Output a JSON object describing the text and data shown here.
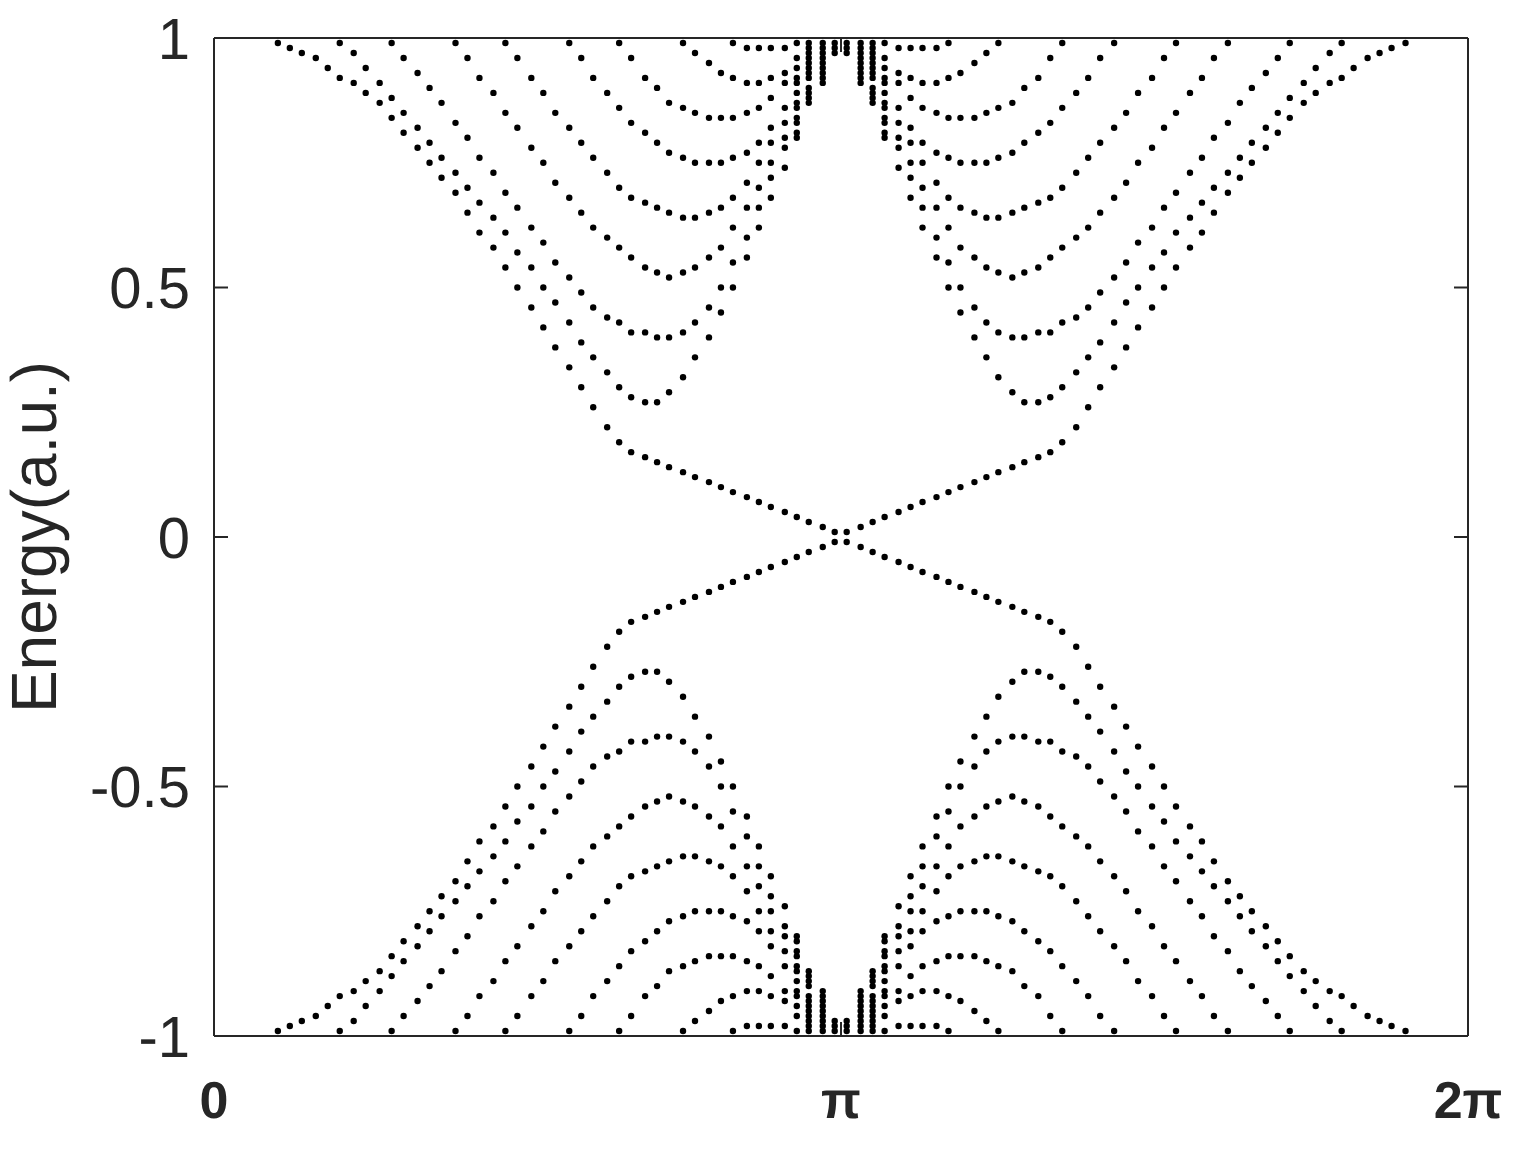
{
  "chart_data": {
    "type": "scatter",
    "ylabel": "Energy(a.u.)",
    "xlim": [
      0,
      6.283
    ],
    "xticks": [
      0,
      {
        "value": 3.1416,
        "label": "π"
      },
      {
        "value": 6.283,
        "label": "2π"
      }
    ],
    "ylim": [
      -1,
      1
    ],
    "yticks": [
      -1,
      -0.5,
      0,
      0.5,
      1
    ],
    "marker": "circle",
    "x": [
      0.32,
      0.38,
      0.44,
      0.51,
      0.57,
      0.63,
      0.7,
      0.76,
      0.83,
      0.89,
      0.95,
      1.02,
      1.08,
      1.14,
      1.21,
      1.27,
      1.33,
      1.4,
      1.46,
      1.52,
      1.59,
      1.65,
      1.71,
      1.78,
      1.84,
      1.9,
      1.97,
      2.03,
      2.09,
      2.16,
      2.22,
      2.28,
      2.35,
      2.41,
      2.48,
      2.54,
      2.6,
      2.67,
      2.73,
      2.79,
      2.86,
      2.92,
      2.98,
      3.05,
      3.11,
      3.17,
      3.24,
      3.3,
      3.36,
      3.43,
      3.49,
      3.55,
      3.62,
      3.68,
      3.74,
      3.81,
      3.87,
      3.93,
      4,
      4.06,
      4.13,
      4.19,
      4.25,
      4.32,
      4.38,
      4.44,
      4.51,
      4.57,
      4.63,
      4.7,
      4.76,
      4.82,
      4.89,
      4.95,
      5.01,
      5.08,
      5.14,
      5.2,
      5.27,
      5.33,
      5.39,
      5.46,
      5.52,
      5.59,
      5.65,
      5.71,
      5.78,
      5.84,
      5.9,
      5.97
    ],
    "series": [
      {
        "color": "#000000",
        "values": [
          0.99,
          0.98,
          0.97,
          0.96,
          0.94,
          0.92,
          0.91,
          0.89,
          0.87,
          0.84,
          0.81,
          0.78,
          0.75,
          0.72,
          0.69,
          0.65,
          0.61,
          0.58,
          0.54,
          0.5,
          0.46,
          0.42,
          0.38,
          0.34,
          0.3,
          0.26,
          0.22,
          0.19,
          0.17,
          0.16,
          0.15,
          0.14,
          0.13,
          0.12,
          0.11,
          0.1,
          0.09,
          0.08,
          0.07,
          0.06,
          0.05,
          0.04,
          0.03,
          0.02,
          0.01,
          -0.01,
          -0.02,
          -0.03,
          -0.04,
          -0.05,
          -0.06,
          -0.07,
          -0.08,
          -0.09,
          -0.1,
          -0.11,
          -0.12,
          -0.13,
          -0.14,
          -0.15,
          -0.16,
          -0.17,
          -0.19,
          -0.22,
          -0.26,
          -0.3,
          -0.34,
          -0.38,
          -0.42,
          -0.46,
          -0.5,
          -0.54,
          -0.58,
          -0.61,
          -0.65,
          -0.69,
          -0.72,
          -0.75,
          -0.78,
          -0.81,
          -0.84,
          -0.87,
          -0.89,
          -0.91,
          -0.92,
          -0.94,
          -0.96,
          -0.97,
          -0.98,
          -0.99
        ]
      },
      {
        "color": "#000000",
        "values": [
          -0.99,
          -0.98,
          -0.97,
          -0.96,
          -0.94,
          -0.92,
          -0.91,
          -0.89,
          -0.87,
          -0.84,
          -0.81,
          -0.78,
          -0.75,
          -0.72,
          -0.69,
          -0.65,
          -0.61,
          -0.58,
          -0.54,
          -0.5,
          -0.46,
          -0.42,
          -0.38,
          -0.34,
          -0.3,
          -0.26,
          -0.22,
          -0.19,
          -0.17,
          -0.16,
          -0.15,
          -0.14,
          -0.13,
          -0.12,
          -0.11,
          -0.1,
          -0.09,
          -0.08,
          -0.07,
          -0.06,
          -0.05,
          -0.04,
          -0.03,
          -0.02,
          -0.01,
          0.01,
          0.02,
          0.03,
          0.04,
          0.05,
          0.06,
          0.07,
          0.08,
          0.09,
          0.1,
          0.11,
          0.12,
          0.13,
          0.14,
          0.15,
          0.16,
          0.17,
          0.19,
          0.22,
          0.26,
          0.3,
          0.34,
          0.38,
          0.42,
          0.46,
          0.5,
          0.54,
          0.58,
          0.61,
          0.65,
          0.69,
          0.72,
          0.75,
          0.78,
          0.81,
          0.84,
          0.87,
          0.89,
          0.91,
          0.92,
          0.94,
          0.96,
          0.97,
          0.98,
          0.99
        ]
      },
      {
        "color": "#000000",
        "values": [
          null,
          null,
          null,
          null,
          null,
          0.99,
          0.97,
          0.94,
          0.91,
          0.88,
          0.85,
          0.82,
          0.79,
          0.76,
          0.73,
          0.7,
          0.67,
          0.64,
          0.61,
          0.57,
          0.54,
          0.5,
          0.47,
          0.43,
          0.39,
          0.36,
          0.33,
          0.3,
          0.28,
          0.27,
          0.27,
          0.29,
          0.32,
          0.36,
          0.4,
          0.45,
          0.5,
          0.56,
          0.62,
          0.68,
          0.74,
          0.8,
          0.87,
          0.93,
          0.99,
          0.99,
          0.93,
          0.87,
          0.8,
          0.74,
          0.68,
          0.62,
          0.56,
          0.5,
          0.45,
          0.4,
          0.36,
          0.32,
          0.29,
          0.27,
          0.27,
          0.28,
          0.3,
          0.33,
          0.36,
          0.39,
          0.43,
          0.47,
          0.5,
          0.54,
          0.57,
          0.61,
          0.64,
          0.67,
          0.7,
          0.73,
          0.76,
          0.79,
          0.82,
          0.85,
          0.88,
          0.91,
          0.94,
          0.97,
          0.99,
          null,
          null,
          null,
          null,
          null
        ]
      },
      {
        "color": "#000000",
        "values": [
          null,
          null,
          null,
          null,
          null,
          null,
          null,
          null,
          null,
          0.99,
          0.96,
          0.93,
          0.9,
          0.87,
          0.83,
          0.8,
          0.76,
          0.73,
          0.69,
          0.66,
          0.62,
          0.59,
          0.55,
          0.52,
          0.49,
          0.46,
          0.44,
          0.43,
          0.41,
          0.41,
          0.4,
          0.4,
          0.41,
          0.43,
          0.46,
          0.5,
          0.55,
          0.6,
          0.66,
          0.72,
          0.78,
          0.83,
          0.89,
          0.95,
          null,
          null,
          0.95,
          0.89,
          0.83,
          0.78,
          0.72,
          0.66,
          0.6,
          0.55,
          0.5,
          0.46,
          0.43,
          0.41,
          0.4,
          0.4,
          0.41,
          0.41,
          0.43,
          0.44,
          0.46,
          0.49,
          0.52,
          0.55,
          0.59,
          0.62,
          0.66,
          0.69,
          0.73,
          0.76,
          0.8,
          0.83,
          0.87,
          0.9,
          0.93,
          0.96,
          0.99,
          null,
          null,
          null,
          null,
          null,
          null,
          null,
          null,
          null
        ]
      },
      {
        "color": "#000000",
        "values": [
          null,
          null,
          null,
          null,
          null,
          null,
          null,
          null,
          null,
          null,
          null,
          null,
          null,
          null,
          0.99,
          0.96,
          0.92,
          0.89,
          0.85,
          0.82,
          0.78,
          0.75,
          0.71,
          0.68,
          0.65,
          0.62,
          0.6,
          0.58,
          0.56,
          0.54,
          0.53,
          0.52,
          0.53,
          0.54,
          0.56,
          0.58,
          0.62,
          0.66,
          0.7,
          0.75,
          0.8,
          0.86,
          0.92,
          0.98,
          null,
          null,
          0.98,
          0.92,
          0.86,
          0.8,
          0.75,
          0.7,
          0.66,
          0.62,
          0.58,
          0.56,
          0.54,
          0.53,
          0.52,
          0.53,
          0.54,
          0.56,
          0.58,
          0.6,
          0.62,
          0.65,
          0.68,
          0.71,
          0.75,
          0.78,
          0.82,
          0.85,
          0.89,
          0.92,
          0.96,
          0.99,
          null,
          null,
          null,
          null,
          null,
          null,
          null,
          null,
          null,
          null,
          null,
          null,
          null,
          null
        ]
      },
      {
        "color": "#000000",
        "values": [
          null,
          null,
          null,
          null,
          null,
          null,
          null,
          null,
          null,
          null,
          null,
          null,
          null,
          null,
          null,
          null,
          null,
          null,
          0.99,
          0.96,
          0.92,
          0.89,
          0.85,
          0.82,
          0.79,
          0.76,
          0.73,
          0.7,
          0.68,
          0.67,
          0.66,
          0.65,
          0.64,
          0.64,
          0.65,
          0.66,
          0.68,
          0.71,
          0.75,
          0.79,
          0.83,
          0.89,
          0.94,
          0.99,
          null,
          null,
          0.99,
          0.94,
          0.89,
          0.83,
          0.79,
          0.75,
          0.71,
          0.68,
          0.66,
          0.65,
          0.64,
          0.64,
          0.65,
          0.66,
          0.67,
          0.68,
          0.7,
          0.73,
          0.76,
          0.79,
          0.82,
          0.85,
          0.89,
          0.92,
          0.96,
          0.99,
          null,
          null,
          null,
          null,
          null,
          null,
          null,
          null,
          null,
          null,
          null,
          null,
          null,
          null,
          null,
          null,
          null,
          null
        ]
      },
      {
        "color": "#000000",
        "values": [
          null,
          null,
          null,
          null,
          null,
          null,
          null,
          null,
          null,
          null,
          null,
          null,
          null,
          null,
          null,
          null,
          null,
          null,
          null,
          null,
          null,
          null,
          null,
          0.99,
          0.96,
          0.92,
          0.89,
          0.86,
          0.83,
          0.81,
          0.79,
          0.77,
          0.76,
          0.75,
          0.75,
          0.75,
          0.76,
          0.77,
          0.79,
          0.82,
          0.86,
          0.91,
          0.96,
          null,
          null,
          null,
          null,
          0.96,
          0.91,
          0.86,
          0.82,
          0.79,
          0.77,
          0.76,
          0.75,
          0.75,
          0.75,
          0.76,
          0.77,
          0.79,
          0.81,
          0.83,
          0.86,
          0.89,
          0.92,
          0.96,
          0.99,
          null,
          null,
          null,
          null,
          null,
          null,
          null,
          null,
          null,
          null,
          null,
          null,
          null,
          null,
          null,
          null,
          null,
          null,
          null,
          null,
          null,
          null,
          null
        ]
      },
      {
        "color": "#000000",
        "values": [
          null,
          null,
          null,
          null,
          null,
          null,
          null,
          null,
          null,
          null,
          null,
          null,
          null,
          null,
          null,
          null,
          null,
          null,
          null,
          null,
          null,
          null,
          null,
          null,
          null,
          null,
          null,
          0.99,
          0.96,
          0.92,
          0.9,
          0.87,
          0.86,
          0.85,
          0.84,
          0.84,
          0.84,
          0.85,
          0.86,
          0.88,
          0.91,
          0.94,
          0.97,
          null,
          null,
          null,
          null,
          0.97,
          0.94,
          0.91,
          0.88,
          0.86,
          0.85,
          0.84,
          0.84,
          0.84,
          0.85,
          0.86,
          0.87,
          0.9,
          0.92,
          0.96,
          0.99,
          null,
          null,
          null,
          null,
          null,
          null,
          null,
          null,
          null,
          null,
          null,
          null,
          null,
          null,
          null,
          null,
          null,
          null,
          null,
          null,
          null,
          null,
          null,
          null,
          null,
          null,
          null
        ]
      },
      {
        "color": "#000000",
        "values": [
          null,
          null,
          null,
          null,
          null,
          null,
          null,
          null,
          null,
          null,
          null,
          null,
          null,
          null,
          null,
          null,
          null,
          null,
          null,
          null,
          null,
          null,
          null,
          null,
          null,
          null,
          null,
          null,
          null,
          null,
          null,
          null,
          0.99,
          0.97,
          0.95,
          0.93,
          0.92,
          0.91,
          0.91,
          0.92,
          0.93,
          0.96,
          0.99,
          null,
          null,
          null,
          null,
          0.99,
          0.96,
          0.93,
          0.92,
          0.91,
          0.91,
          0.92,
          0.93,
          0.95,
          0.97,
          0.99,
          null,
          null,
          null,
          null,
          null,
          null,
          null,
          null,
          null,
          null,
          null,
          null,
          null,
          null,
          null,
          null,
          null,
          null,
          null,
          null,
          null,
          null,
          null,
          null,
          null,
          null,
          null,
          null,
          null,
          null,
          null,
          null
        ]
      },
      {
        "color": "#000000",
        "x": [
          2.6,
          2.67,
          2.73,
          2.79,
          2.86,
          2.92,
          3.36,
          3.43,
          3.49,
          3.55,
          3.62,
          3.68
        ],
        "values": [
          0.99,
          0.98,
          0.98,
          0.98,
          0.98,
          0.99,
          0.99,
          0.98,
          0.98,
          0.98,
          0.98,
          0.99
        ]
      },
      {
        "color": "#000000",
        "x": [
          2.92,
          2.92,
          2.92,
          2.92,
          2.98,
          2.98,
          2.98,
          2.98,
          2.98,
          3.05,
          3.05,
          3.05,
          3.05,
          3.05,
          3.11,
          3.11,
          3.17,
          3.17,
          3.24,
          3.24,
          3.24,
          3.24,
          3.24,
          3.3,
          3.3,
          3.3,
          3.3,
          3.3,
          3.36,
          3.36,
          3.36,
          3.36
        ],
        "values": [
          0.81,
          0.84,
          0.87,
          0.92,
          0.88,
          0.9,
          0.93,
          0.95,
          0.98,
          0.91,
          0.92,
          0.94,
          0.96,
          0.97,
          0.97,
          0.98,
          0.97,
          0.98,
          0.91,
          0.92,
          0.94,
          0.96,
          0.97,
          0.88,
          0.9,
          0.93,
          0.95,
          0.98,
          0.81,
          0.84,
          0.87,
          0.92
        ]
      },
      {
        "color": "#000000",
        "values": [
          null,
          null,
          null,
          null,
          null,
          -0.99,
          -0.97,
          -0.94,
          -0.91,
          -0.88,
          -0.85,
          -0.82,
          -0.79,
          -0.76,
          -0.73,
          -0.7,
          -0.67,
          -0.64,
          -0.61,
          -0.57,
          -0.54,
          -0.5,
          -0.47,
          -0.43,
          -0.39,
          -0.36,
          -0.33,
          -0.3,
          -0.28,
          -0.27,
          -0.27,
          -0.29,
          -0.32,
          -0.36,
          -0.4,
          -0.45,
          -0.5,
          -0.56,
          -0.62,
          -0.68,
          -0.74,
          -0.8,
          -0.87,
          -0.93,
          -0.99,
          -0.99,
          -0.93,
          -0.87,
          -0.8,
          -0.74,
          -0.68,
          -0.62,
          -0.56,
          -0.5,
          -0.45,
          -0.4,
          -0.36,
          -0.32,
          -0.29,
          -0.27,
          -0.27,
          -0.28,
          -0.3,
          -0.33,
          -0.36,
          -0.39,
          -0.43,
          -0.47,
          -0.5,
          -0.54,
          -0.57,
          -0.61,
          -0.64,
          -0.67,
          -0.7,
          -0.73,
          -0.76,
          -0.79,
          -0.82,
          -0.85,
          -0.88,
          -0.91,
          -0.94,
          -0.97,
          -0.99,
          null,
          null,
          null,
          null,
          null
        ]
      },
      {
        "color": "#000000",
        "values": [
          null,
          null,
          null,
          null,
          null,
          null,
          null,
          null,
          null,
          -0.99,
          -0.96,
          -0.93,
          -0.9,
          -0.87,
          -0.83,
          -0.8,
          -0.76,
          -0.73,
          -0.69,
          -0.66,
          -0.62,
          -0.59,
          -0.55,
          -0.52,
          -0.49,
          -0.46,
          -0.44,
          -0.43,
          -0.41,
          -0.41,
          -0.4,
          -0.4,
          -0.41,
          -0.43,
          -0.46,
          -0.5,
          -0.55,
          -0.6,
          -0.66,
          -0.72,
          -0.78,
          -0.83,
          -0.89,
          -0.95,
          null,
          null,
          -0.95,
          -0.89,
          -0.83,
          -0.78,
          -0.72,
          -0.66,
          -0.6,
          -0.55,
          -0.5,
          -0.46,
          -0.43,
          -0.41,
          -0.4,
          -0.4,
          -0.41,
          -0.41,
          -0.43,
          -0.44,
          -0.46,
          -0.49,
          -0.52,
          -0.55,
          -0.59,
          -0.62,
          -0.66,
          -0.69,
          -0.73,
          -0.76,
          -0.8,
          -0.83,
          -0.87,
          -0.9,
          -0.93,
          -0.96,
          -0.99,
          null,
          null,
          null,
          null,
          null,
          null,
          null,
          null,
          null
        ]
      },
      {
        "color": "#000000",
        "values": [
          null,
          null,
          null,
          null,
          null,
          null,
          null,
          null,
          null,
          null,
          null,
          null,
          null,
          null,
          -0.99,
          -0.96,
          -0.92,
          -0.89,
          -0.85,
          -0.82,
          -0.78,
          -0.75,
          -0.71,
          -0.68,
          -0.65,
          -0.62,
          -0.6,
          -0.58,
          -0.56,
          -0.54,
          -0.53,
          -0.52,
          -0.53,
          -0.54,
          -0.56,
          -0.58,
          -0.62,
          -0.66,
          -0.7,
          -0.75,
          -0.8,
          -0.86,
          -0.92,
          -0.98,
          null,
          null,
          -0.98,
          -0.92,
          -0.86,
          -0.8,
          -0.75,
          -0.7,
          -0.66,
          -0.62,
          -0.58,
          -0.56,
          -0.54,
          -0.53,
          -0.52,
          -0.53,
          -0.54,
          -0.56,
          -0.58,
          -0.6,
          -0.62,
          -0.65,
          -0.68,
          -0.71,
          -0.75,
          -0.78,
          -0.82,
          -0.85,
          -0.89,
          -0.92,
          -0.96,
          -0.99,
          null,
          null,
          null,
          null,
          null,
          null,
          null,
          null,
          null,
          null,
          null,
          null,
          null,
          null
        ]
      },
      {
        "color": "#000000",
        "values": [
          null,
          null,
          null,
          null,
          null,
          null,
          null,
          null,
          null,
          null,
          null,
          null,
          null,
          null,
          null,
          null,
          null,
          null,
          -0.99,
          -0.96,
          -0.92,
          -0.89,
          -0.85,
          -0.82,
          -0.79,
          -0.76,
          -0.73,
          -0.7,
          -0.68,
          -0.67,
          -0.66,
          -0.65,
          -0.64,
          -0.64,
          -0.65,
          -0.66,
          -0.68,
          -0.71,
          -0.75,
          -0.79,
          -0.83,
          -0.89,
          -0.94,
          -0.99,
          null,
          null,
          -0.99,
          -0.94,
          -0.89,
          -0.83,
          -0.79,
          -0.75,
          -0.71,
          -0.68,
          -0.66,
          -0.65,
          -0.64,
          -0.64,
          -0.65,
          -0.66,
          -0.67,
          -0.68,
          -0.7,
          -0.73,
          -0.76,
          -0.79,
          -0.82,
          -0.85,
          -0.89,
          -0.92,
          -0.96,
          -0.99,
          null,
          null,
          null,
          null,
          null,
          null,
          null,
          null,
          null,
          null,
          null,
          null,
          null,
          null,
          null,
          null,
          null,
          null
        ]
      },
      {
        "color": "#000000",
        "values": [
          null,
          null,
          null,
          null,
          null,
          null,
          null,
          null,
          null,
          null,
          null,
          null,
          null,
          null,
          null,
          null,
          null,
          null,
          null,
          null,
          null,
          null,
          null,
          -0.99,
          -0.96,
          -0.92,
          -0.89,
          -0.86,
          -0.83,
          -0.81,
          -0.79,
          -0.77,
          -0.76,
          -0.75,
          -0.75,
          -0.75,
          -0.76,
          -0.77,
          -0.79,
          -0.82,
          -0.86,
          -0.91,
          -0.96,
          null,
          null,
          null,
          null,
          -0.96,
          -0.91,
          -0.86,
          -0.82,
          -0.79,
          -0.77,
          -0.76,
          -0.75,
          -0.75,
          -0.75,
          -0.76,
          -0.77,
          -0.79,
          -0.81,
          -0.83,
          -0.86,
          -0.89,
          -0.92,
          -0.96,
          -0.99,
          null,
          null,
          null,
          null,
          null,
          null,
          null,
          null,
          null,
          null,
          null,
          null,
          null,
          null,
          null,
          null,
          null,
          null,
          null,
          null,
          null,
          null,
          null
        ]
      },
      {
        "color": "#000000",
        "values": [
          null,
          null,
          null,
          null,
          null,
          null,
          null,
          null,
          null,
          null,
          null,
          null,
          null,
          null,
          null,
          null,
          null,
          null,
          null,
          null,
          null,
          null,
          null,
          null,
          null,
          null,
          null,
          -0.99,
          -0.96,
          -0.92,
          -0.9,
          -0.87,
          -0.86,
          -0.85,
          -0.84,
          -0.84,
          -0.84,
          -0.85,
          -0.86,
          -0.88,
          -0.91,
          -0.94,
          -0.97,
          null,
          null,
          null,
          null,
          -0.97,
          -0.94,
          -0.91,
          -0.88,
          -0.86,
          -0.85,
          -0.84,
          -0.84,
          -0.84,
          -0.85,
          -0.86,
          -0.87,
          -0.9,
          -0.92,
          -0.96,
          -0.99,
          null,
          null,
          null,
          null,
          null,
          null,
          null,
          null,
          null,
          null,
          null,
          null,
          null,
          null,
          null,
          null,
          null,
          null,
          null,
          null,
          null,
          null,
          null,
          null,
          null,
          null,
          null
        ]
      },
      {
        "color": "#000000",
        "values": [
          null,
          null,
          null,
          null,
          null,
          null,
          null,
          null,
          null,
          null,
          null,
          null,
          null,
          null,
          null,
          null,
          null,
          null,
          null,
          null,
          null,
          null,
          null,
          null,
          null,
          null,
          null,
          null,
          null,
          null,
          null,
          null,
          -0.99,
          -0.97,
          -0.95,
          -0.93,
          -0.92,
          -0.91,
          -0.91,
          -0.92,
          -0.93,
          -0.96,
          -0.99,
          null,
          null,
          null,
          null,
          -0.99,
          -0.96,
          -0.93,
          -0.92,
          -0.91,
          -0.91,
          -0.92,
          -0.93,
          -0.95,
          -0.97,
          -0.99,
          null,
          null,
          null,
          null,
          null,
          null,
          null,
          null,
          null,
          null,
          null,
          null,
          null,
          null,
          null,
          null,
          null,
          null,
          null,
          null,
          null,
          null,
          null,
          null,
          null,
          null,
          null,
          null,
          null,
          null,
          null,
          null
        ]
      },
      {
        "color": "#000000",
        "x": [
          2.6,
          2.67,
          2.73,
          2.79,
          2.86,
          2.92,
          3.36,
          3.43,
          3.49,
          3.55,
          3.62,
          3.68
        ],
        "values": [
          -0.99,
          -0.98,
          -0.98,
          -0.98,
          -0.98,
          -0.99,
          -0.99,
          -0.98,
          -0.98,
          -0.98,
          -0.98,
          -0.99
        ]
      },
      {
        "color": "#000000",
        "x": [
          2.92,
          2.92,
          2.92,
          2.92,
          2.98,
          2.98,
          2.98,
          2.98,
          2.98,
          3.05,
          3.05,
          3.05,
          3.05,
          3.05,
          3.11,
          3.11,
          3.17,
          3.17,
          3.24,
          3.24,
          3.24,
          3.24,
          3.24,
          3.3,
          3.3,
          3.3,
          3.3,
          3.3,
          3.36,
          3.36,
          3.36,
          3.36
        ],
        "values": [
          -0.81,
          -0.84,
          -0.87,
          -0.92,
          -0.88,
          -0.9,
          -0.93,
          -0.95,
          -0.98,
          -0.91,
          -0.92,
          -0.94,
          -0.96,
          -0.97,
          -0.97,
          -0.98,
          -0.97,
          -0.98,
          -0.91,
          -0.92,
          -0.94,
          -0.96,
          -0.97,
          -0.88,
          -0.9,
          -0.93,
          -0.95,
          -0.98,
          -0.81,
          -0.84,
          -0.87,
          -0.92
        ]
      }
    ]
  }
}
